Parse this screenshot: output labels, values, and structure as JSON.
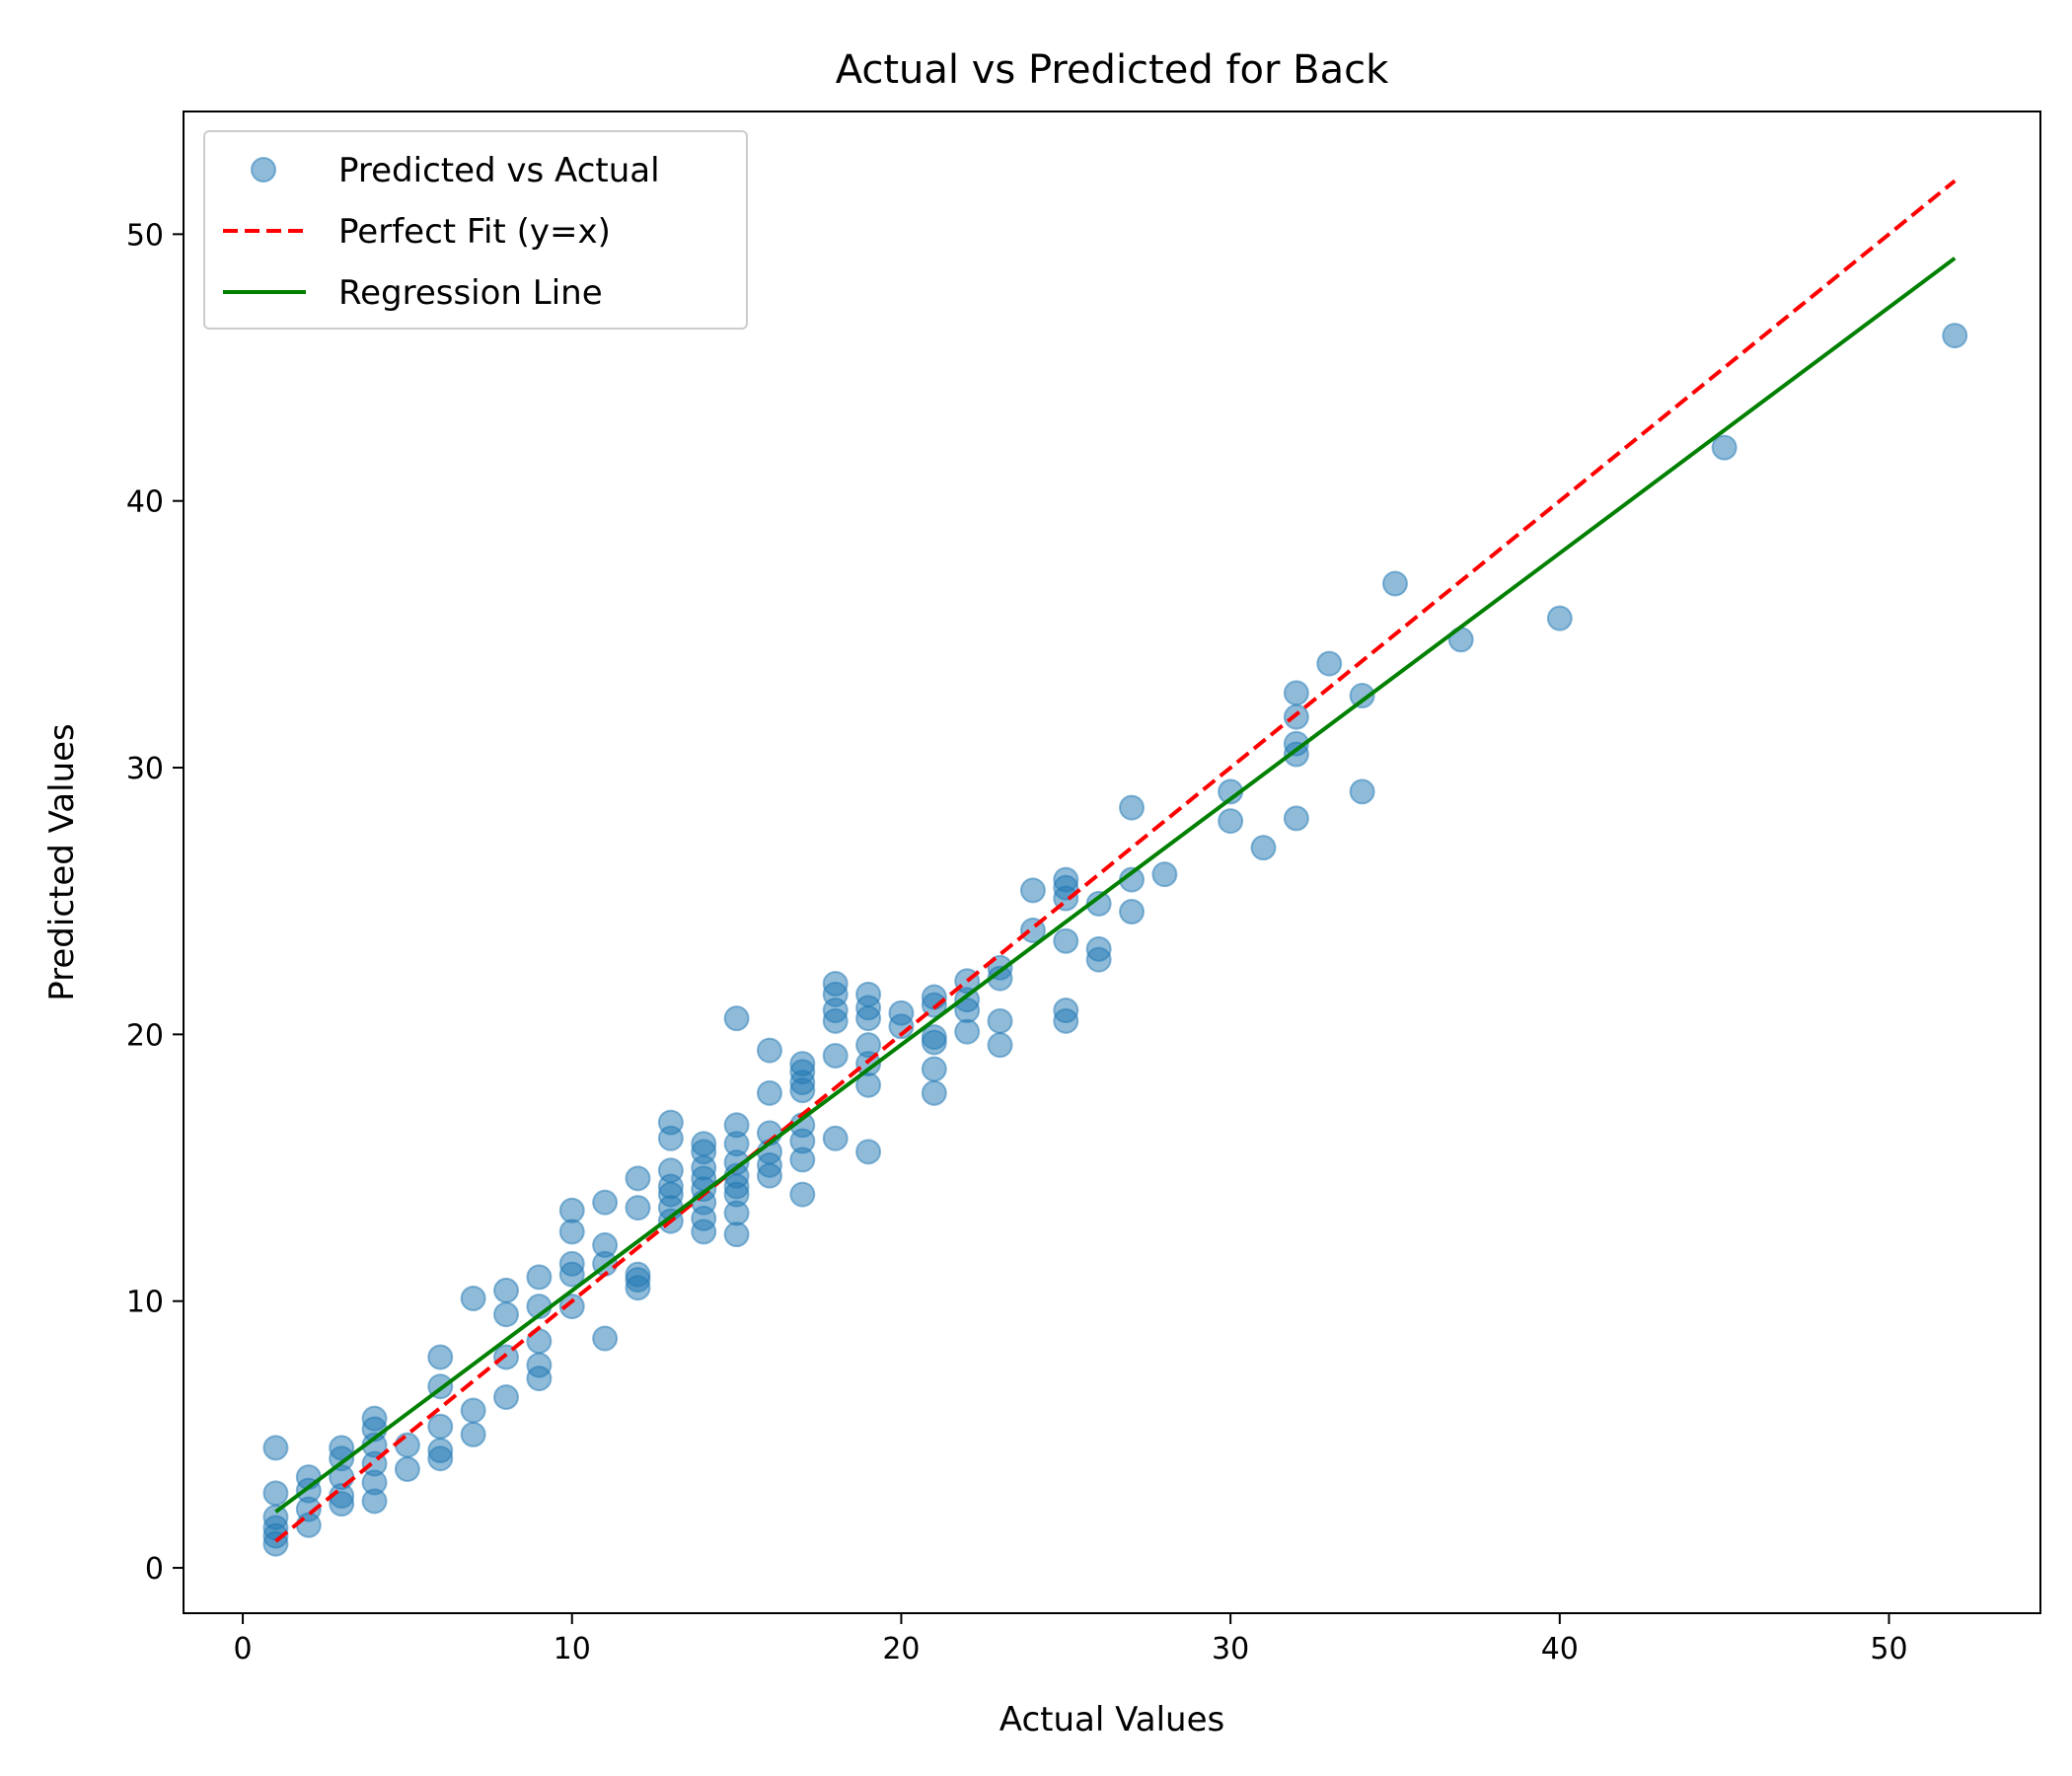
{
  "chart_data": {
    "type": "scatter",
    "title": "Actual vs Predicted for Back",
    "xlabel": "Actual Values",
    "ylabel": "Predicted Values",
    "xlim": [
      -1.8,
      54.6
    ],
    "ylim": [
      -1.7,
      54.6
    ],
    "xticks": [
      0,
      10,
      20,
      30,
      40,
      50
    ],
    "yticks": [
      0,
      10,
      20,
      30,
      40,
      50
    ],
    "grid": false,
    "legend_position": "top-left",
    "colors": {
      "scatter": "#1f77b4",
      "perfect_fit": "#ff0000",
      "regression": "#008000"
    },
    "series": [
      {
        "name": "Predicted vs Actual",
        "kind": "scatter",
        "points": [
          [
            1,
            4.5
          ],
          [
            1,
            2.8
          ],
          [
            1,
            1.9
          ],
          [
            1,
            1.5
          ],
          [
            1,
            1.2
          ],
          [
            1,
            0.9
          ],
          [
            2,
            3.4
          ],
          [
            2,
            2.9
          ],
          [
            2,
            2.2
          ],
          [
            2,
            1.6
          ],
          [
            3,
            4.5
          ],
          [
            3,
            4.1
          ],
          [
            3,
            3.4
          ],
          [
            3,
            2.7
          ],
          [
            3,
            2.4
          ],
          [
            4,
            5.6
          ],
          [
            4,
            5.2
          ],
          [
            4,
            4.6
          ],
          [
            4,
            3.9
          ],
          [
            4,
            3.2
          ],
          [
            4,
            2.5
          ],
          [
            5,
            4.6
          ],
          [
            5,
            3.7
          ],
          [
            6,
            7.9
          ],
          [
            6,
            6.8
          ],
          [
            6,
            5.3
          ],
          [
            6,
            4.4
          ],
          [
            6,
            4.1
          ],
          [
            7,
            10.1
          ],
          [
            7,
            5.9
          ],
          [
            7,
            5.0
          ],
          [
            8,
            10.4
          ],
          [
            8,
            9.5
          ],
          [
            8,
            7.9
          ],
          [
            8,
            6.4
          ],
          [
            9,
            10.9
          ],
          [
            9,
            9.8
          ],
          [
            9,
            8.5
          ],
          [
            9,
            7.6
          ],
          [
            9,
            7.1
          ],
          [
            10,
            13.4
          ],
          [
            10,
            12.6
          ],
          [
            10,
            11.4
          ],
          [
            10,
            11.0
          ],
          [
            10,
            9.8
          ],
          [
            11,
            13.7
          ],
          [
            11,
            12.1
          ],
          [
            11,
            11.4
          ],
          [
            11,
            8.6
          ],
          [
            12,
            14.6
          ],
          [
            12,
            13.5
          ],
          [
            12,
            11.0
          ],
          [
            12,
            10.8
          ],
          [
            12,
            10.5
          ],
          [
            13,
            16.7
          ],
          [
            13,
            16.1
          ],
          [
            13,
            14.9
          ],
          [
            13,
            14.3
          ],
          [
            13,
            14.0
          ],
          [
            13,
            13.5
          ],
          [
            13,
            13.0
          ],
          [
            14,
            15.9
          ],
          [
            14,
            15.6
          ],
          [
            14,
            15.0
          ],
          [
            14,
            14.6
          ],
          [
            14,
            14.2
          ],
          [
            14,
            13.7
          ],
          [
            14,
            13.1
          ],
          [
            14,
            12.6
          ],
          [
            15,
            20.6
          ],
          [
            15,
            16.6
          ],
          [
            15,
            15.9
          ],
          [
            15,
            15.2
          ],
          [
            15,
            14.7
          ],
          [
            15,
            14.3
          ],
          [
            15,
            14.0
          ],
          [
            15,
            13.3
          ],
          [
            15,
            12.5
          ],
          [
            16,
            19.4
          ],
          [
            16,
            17.8
          ],
          [
            16,
            16.3
          ],
          [
            16,
            15.6
          ],
          [
            16,
            15.1
          ],
          [
            16,
            14.7
          ],
          [
            17,
            18.9
          ],
          [
            17,
            18.6
          ],
          [
            17,
            18.2
          ],
          [
            17,
            17.9
          ],
          [
            17,
            16.6
          ],
          [
            17,
            16.0
          ],
          [
            17,
            15.3
          ],
          [
            17,
            14.0
          ],
          [
            18,
            21.9
          ],
          [
            18,
            21.5
          ],
          [
            18,
            20.9
          ],
          [
            18,
            20.5
          ],
          [
            18,
            19.2
          ],
          [
            18,
            16.1
          ],
          [
            19,
            21.5
          ],
          [
            19,
            21.0
          ],
          [
            19,
            20.6
          ],
          [
            19,
            19.6
          ],
          [
            19,
            18.9
          ],
          [
            19,
            18.1
          ],
          [
            19,
            15.6
          ],
          [
            20,
            20.8
          ],
          [
            20,
            20.3
          ],
          [
            21,
            21.4
          ],
          [
            21,
            21.1
          ],
          [
            21,
            19.9
          ],
          [
            21,
            19.7
          ],
          [
            21,
            18.7
          ],
          [
            21,
            17.8
          ],
          [
            22,
            22.0
          ],
          [
            22,
            21.3
          ],
          [
            22,
            20.9
          ],
          [
            22,
            20.1
          ],
          [
            23,
            22.5
          ],
          [
            23,
            22.1
          ],
          [
            23,
            20.5
          ],
          [
            23,
            19.6
          ],
          [
            24,
            25.4
          ],
          [
            24,
            23.9
          ],
          [
            25,
            25.8
          ],
          [
            25,
            25.5
          ],
          [
            25,
            25.1
          ],
          [
            25,
            23.5
          ],
          [
            25,
            20.9
          ],
          [
            25,
            20.5
          ],
          [
            26,
            24.9
          ],
          [
            26,
            23.2
          ],
          [
            26,
            22.8
          ],
          [
            27,
            28.5
          ],
          [
            27,
            25.8
          ],
          [
            27,
            24.6
          ],
          [
            28,
            26.0
          ],
          [
            30,
            29.1
          ],
          [
            30,
            28.0
          ],
          [
            31,
            27.0
          ],
          [
            32,
            32.8
          ],
          [
            32,
            31.9
          ],
          [
            32,
            30.9
          ],
          [
            32,
            30.5
          ],
          [
            32,
            28.1
          ],
          [
            33,
            33.9
          ],
          [
            34,
            32.7
          ],
          [
            34,
            29.1
          ],
          [
            35,
            36.9
          ],
          [
            37,
            34.8
          ],
          [
            40,
            35.6
          ],
          [
            45,
            42.0
          ],
          [
            52,
            46.2
          ]
        ]
      },
      {
        "name": "Perfect Fit (y=x)",
        "kind": "line",
        "style": "dashed",
        "points": [
          [
            1,
            1
          ],
          [
            52,
            52
          ]
        ]
      },
      {
        "name": "Regression Line",
        "kind": "line",
        "style": "solid",
        "points": [
          [
            1,
            2.1
          ],
          [
            52,
            49.1
          ]
        ]
      }
    ]
  }
}
